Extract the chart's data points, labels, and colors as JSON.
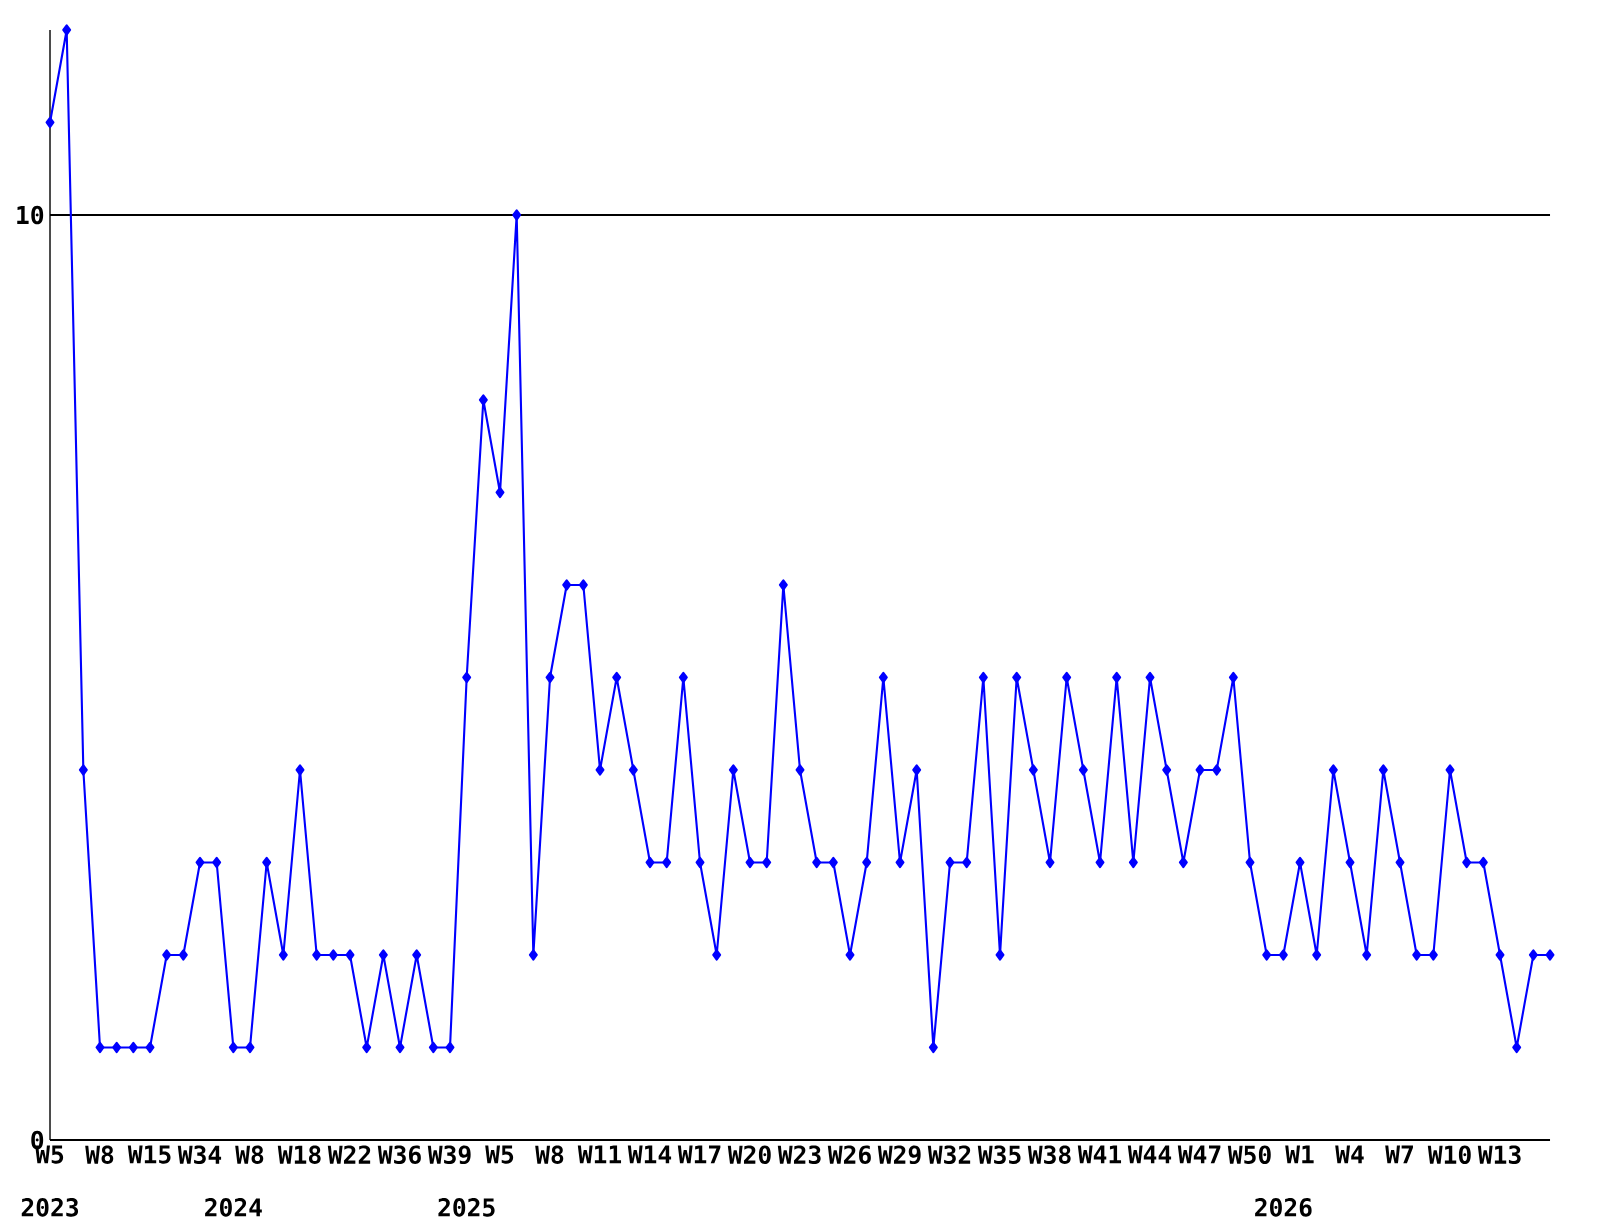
{
  "chart_data": {
    "type": "line",
    "categories": [
      "W5",
      null,
      null,
      "W8",
      null,
      null,
      "W15",
      null,
      null,
      "W34",
      null,
      null,
      "W8",
      null,
      null,
      "W18",
      null,
      null,
      "W22",
      null,
      null,
      "W36",
      null,
      null,
      "W39",
      null,
      null,
      "W5",
      null,
      null,
      "W8",
      null,
      null,
      "W11",
      null,
      null,
      "W14",
      null,
      null,
      "W17",
      null,
      null,
      "W20",
      null,
      null,
      "W23",
      null,
      null,
      "W26",
      null,
      null,
      "W29",
      null,
      null,
      "W32",
      null,
      null,
      "W35",
      null,
      null,
      "W38",
      null,
      null,
      "W41",
      null,
      null,
      "W44",
      null,
      null,
      "W47",
      null,
      null,
      "W50",
      null,
      null,
      "W1",
      null,
      null,
      "W4",
      null,
      null,
      "W7",
      null,
      null,
      "W10",
      null,
      null,
      "W13",
      null,
      null,
      null
    ],
    "series": [
      {
        "color": "#0000ff",
        "values": [
          11,
          12,
          4,
          1,
          1,
          1,
          1,
          2,
          2,
          3,
          3,
          1,
          1,
          3,
          2,
          4,
          2,
          2,
          2,
          1,
          2,
          1,
          2,
          1,
          1,
          5,
          8,
          7,
          10,
          2,
          5,
          6,
          6,
          4,
          5,
          4,
          3,
          3,
          5,
          3,
          2,
          4,
          3,
          3,
          6,
          4,
          3,
          3,
          2,
          3,
          5,
          3,
          4,
          1,
          3,
          3,
          5,
          2,
          5,
          4,
          3,
          5,
          4,
          3,
          5,
          3,
          5,
          4,
          3,
          4,
          4,
          5,
          3,
          2,
          2,
          3,
          2,
          4,
          3,
          2,
          4,
          3,
          2,
          2,
          4,
          3,
          3,
          2,
          1,
          2,
          2
        ]
      }
    ],
    "ylim": [
      0,
      12
    ],
    "yticks": [
      0,
      10
    ],
    "grid": "y",
    "marker": "diamond",
    "line_style": "solid",
    "annotations": [
      "2023",
      "2024",
      "2025",
      "2026"
    ]
  }
}
